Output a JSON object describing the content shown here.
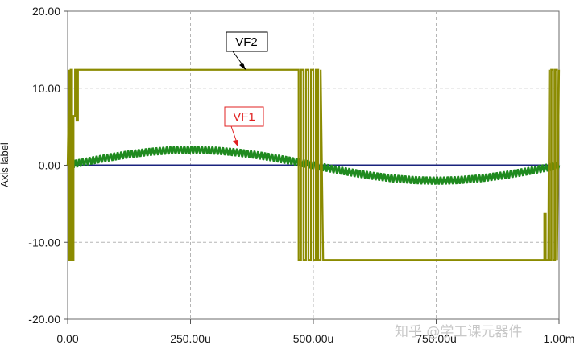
{
  "chart_data": {
    "type": "line",
    "ylabel": "Axis label",
    "x_unit": "s",
    "xlim": [
      0,
      0.001
    ],
    "ylim": [
      -20,
      20
    ],
    "x_ticks": [
      0,
      0.00025,
      0.0005,
      0.00075,
      0.001
    ],
    "x_tick_labels": [
      "0.00",
      "250.00u",
      "500.00u",
      "750.00u",
      "1.00m"
    ],
    "y_ticks": [
      20,
      10,
      0,
      -10,
      -20
    ],
    "y_tick_labels": [
      "20.00",
      "10.00",
      "0.00",
      "-10.00",
      "-20.00"
    ],
    "grid": true,
    "series": [
      {
        "name": "VF2",
        "color": "#8b8b00",
        "style": "square wave with switching chatter at transitions",
        "x": [
          0,
          2e-05,
          0.00047,
          0.00052,
          0.00098,
          0.001
        ],
        "y": [
          0,
          12.4,
          12.4,
          -12.3,
          -12.3,
          12.4
        ]
      },
      {
        "name": "VF1",
        "color": "#1f8a1f",
        "style": "sine wave with high-frequency ripple",
        "x": [
          0,
          0.000125,
          0.00025,
          0.000375,
          0.0005,
          0.000625,
          0.00075,
          0.000875,
          0.001
        ],
        "y": [
          0,
          1.41,
          2.0,
          1.41,
          0,
          -1.41,
          -2.0,
          -1.41,
          0
        ]
      },
      {
        "name": "",
        "color": "#1a237e",
        "style": "flat reference line",
        "x": [
          0,
          0.001
        ],
        "y": [
          0,
          0
        ]
      }
    ],
    "annotations": [
      {
        "label": "VF2",
        "text_color": "#000000"
      },
      {
        "label": "VF1",
        "text_color": "#e02020"
      }
    ]
  },
  "watermark": "知乎 @学工课元器件"
}
